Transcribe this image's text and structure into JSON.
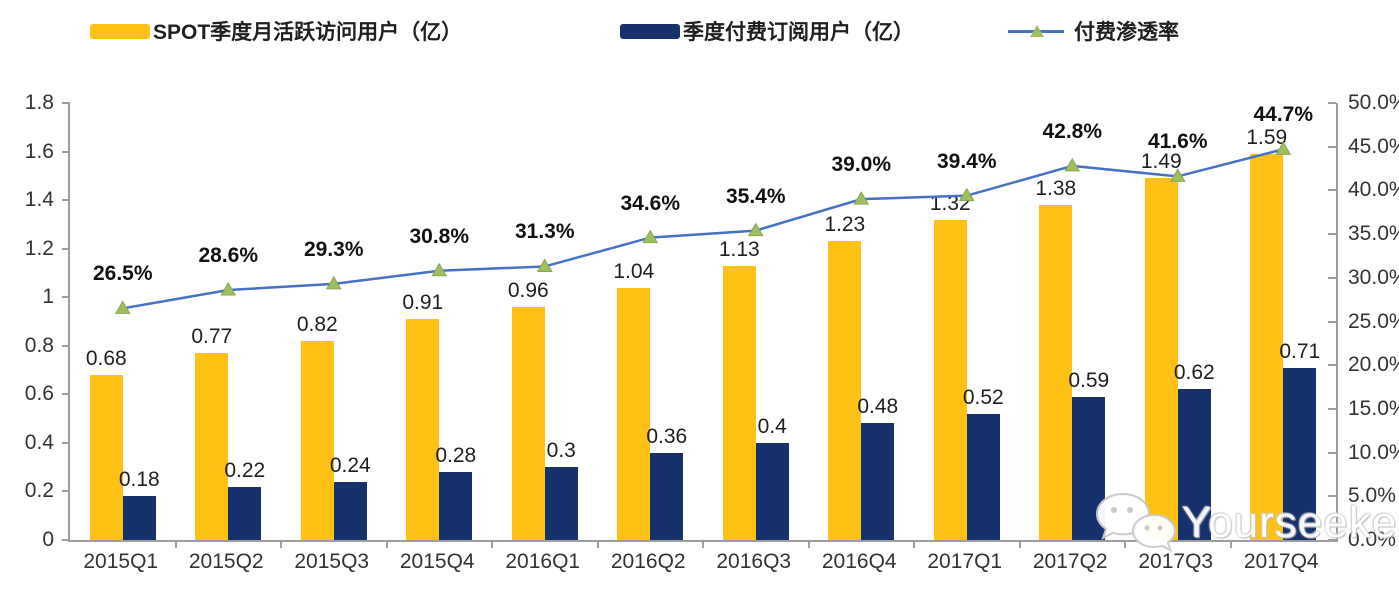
{
  "legend": {
    "items": [
      {
        "label": "SPOT季度月活跃访问用户（亿）",
        "type": "bar",
        "color": "#ffc115"
      },
      {
        "label": "季度付费订阅用户（亿）",
        "type": "bar",
        "color": "#16326c"
      },
      {
        "label": "付费渗透率",
        "type": "line",
        "color": "#4472c4",
        "marker_color": "#9fbe5f"
      }
    ]
  },
  "chart_data": {
    "type": "bar",
    "subtype": "combo-bar-line-dual-axis",
    "categories": [
      "2015Q1",
      "2015Q2",
      "2015Q3",
      "2015Q4",
      "2016Q1",
      "2016Q2",
      "2016Q3",
      "2016Q4",
      "2017Q1",
      "2017Q2",
      "2017Q3",
      "2017Q4"
    ],
    "series": [
      {
        "name": "SPOT季度月活跃访问用户（亿）",
        "type": "bar",
        "axis": "left",
        "color": "#ffc115",
        "values": [
          0.68,
          0.77,
          0.82,
          0.91,
          0.96,
          1.04,
          1.13,
          1.23,
          1.32,
          1.38,
          1.49,
          1.59
        ],
        "labels": [
          "0.68",
          "0.77",
          "0.82",
          "0.91",
          "0.96",
          "1.04",
          "1.13",
          "1.23",
          "1.32",
          "1.38",
          "1.49",
          "1.59"
        ]
      },
      {
        "name": "季度付费订阅用户（亿）",
        "type": "bar",
        "axis": "left",
        "color": "#16326c",
        "values": [
          0.18,
          0.22,
          0.24,
          0.28,
          0.3,
          0.36,
          0.4,
          0.48,
          0.52,
          0.59,
          0.62,
          0.71
        ],
        "labels": [
          "0.18",
          "0.22",
          "0.24",
          "0.28",
          "0.3",
          "0.36",
          "0.4",
          "0.48",
          "0.52",
          "0.59",
          "0.62",
          "0.71"
        ]
      },
      {
        "name": "付费渗透率",
        "type": "line",
        "axis": "right",
        "color": "#4472c4",
        "marker": "triangle",
        "marker_color": "#9fbe5f",
        "values": [
          26.5,
          28.6,
          29.3,
          30.8,
          31.3,
          34.6,
          35.4,
          39.0,
          39.4,
          42.8,
          41.6,
          44.7
        ],
        "labels": [
          "26.5%",
          "28.6%",
          "29.3%",
          "30.8%",
          "31.3%",
          "34.6%",
          "35.4%",
          "39.0%",
          "39.4%",
          "42.8%",
          "41.6%",
          "44.7%"
        ]
      }
    ],
    "left_axis": {
      "min": 0,
      "max": 1.8,
      "step": 0.2,
      "ticks": [
        "0",
        "0.2",
        "0.4",
        "0.6",
        "0.8",
        "1",
        "1.2",
        "1.4",
        "1.6",
        "1.8"
      ]
    },
    "right_axis": {
      "min": 0,
      "max": 50,
      "step": 5,
      "ticks": [
        "0.0%",
        "5.0%",
        "10.0%",
        "15.0%",
        "20.0%",
        "25.0%",
        "30.0%",
        "35.0%",
        "40.0%",
        "45.0%",
        "50.0%"
      ]
    },
    "grid": false,
    "legend_position": "top"
  },
  "watermark": {
    "text": "Yourseeker",
    "icon": "wechat-icon"
  }
}
